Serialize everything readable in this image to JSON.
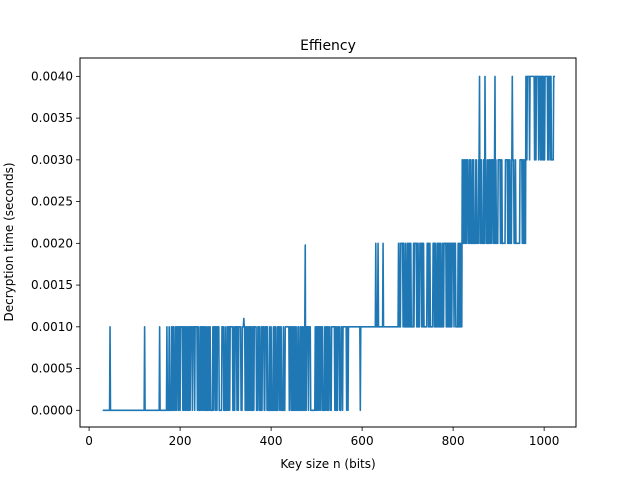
{
  "chart_data": {
    "type": "line",
    "title": "Effiency",
    "xlabel": "Key size n (bits)",
    "ylabel": "Decryption time (seconds)",
    "xlim": [
      -20,
      1070
    ],
    "ylim": [
      -0.0002,
      0.00422
    ],
    "xticks": [
      0,
      200,
      400,
      600,
      800,
      1000
    ],
    "yticks": [
      0.0,
      0.0005,
      0.001,
      0.0015,
      0.002,
      0.0025,
      0.003,
      0.0035,
      0.004
    ],
    "xtick_labels": [
      "0",
      "200",
      "400",
      "600",
      "800",
      "1000"
    ],
    "ytick_labels": [
      "0.0000",
      "0.0005",
      "0.0010",
      "0.0015",
      "0.0020",
      "0.0025",
      "0.0030",
      "0.0035",
      "0.0040"
    ],
    "grid": false,
    "legend": "none",
    "series": [
      {
        "color": "#1f77b4",
        "x_range": [
          30,
          1024
        ],
        "segments": [
          {
            "from": 30,
            "to": 170,
            "base": 0.0,
            "spike": 0.001,
            "spike_x": [
              46,
              122,
              155
            ]
          },
          {
            "from": 170,
            "to": 600,
            "base": 0.0,
            "alt": 0.001,
            "mix": 0.55,
            "extra_spikes": [
              [
                340,
                0.0011
              ],
              [
                475,
                0.00198
              ]
            ]
          },
          {
            "from": 570,
            "to": 680,
            "base": 0.001,
            "spike": 0.002,
            "spike_x": [
              630,
              635,
              646
            ],
            "dips": [
              [
                596,
                0.0
              ]
            ]
          },
          {
            "from": 680,
            "to": 820,
            "base": 0.002,
            "alt": 0.001,
            "mix": 0.5
          },
          {
            "from": 820,
            "to": 960,
            "base": 0.002,
            "alt": 0.003,
            "mix": 0.5,
            "extra_spikes": [
              [
                858,
                0.004
              ],
              [
                870,
                0.004
              ],
              [
                892,
                0.004
              ],
              [
                930,
                0.004
              ]
            ]
          },
          {
            "from": 960,
            "to": 1024,
            "base": 0.003,
            "alt": 0.004,
            "mix": 0.6
          }
        ]
      }
    ]
  }
}
